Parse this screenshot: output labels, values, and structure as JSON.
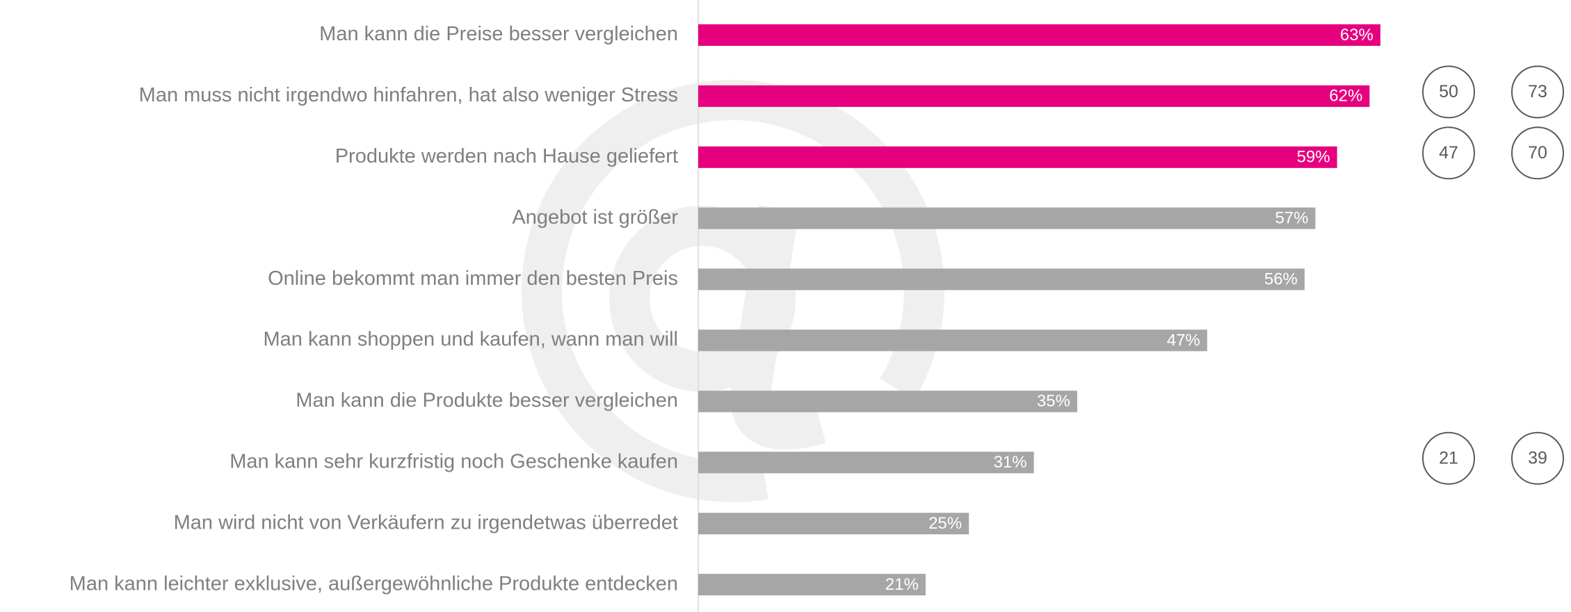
{
  "chart_data": {
    "type": "bar",
    "orientation": "horizontal",
    "categories": [
      "Man kann die Preise besser vergleichen",
      "Man muss nicht irgendwo hinfahren, hat also weniger Stress",
      "Produkte werden nach Hause geliefert",
      "Angebot ist größer",
      "Online bekommt man immer den besten Preis",
      "Man kann shoppen und kaufen, wann man will",
      "Man kann die Produkte besser vergleichen",
      "Man kann sehr kurzfristig noch Geschenke kaufen",
      "Man wird nicht von Verkäufern zu irgendetwas überredet",
      "Man kann leichter exklusive, außergewöhnliche Produkte entdecken"
    ],
    "values": [
      63,
      62,
      59,
      57,
      56,
      47,
      35,
      31,
      25,
      21
    ],
    "value_labels": [
      "63%",
      "62%",
      "59%",
      "57%",
      "56%",
      "47%",
      "35%",
      "31%",
      "25%",
      "21%"
    ],
    "colors": [
      "#e6007e",
      "#e6007e",
      "#e6007e",
      "#a6a6a6",
      "#a6a6a6",
      "#a6a6a6",
      "#a6a6a6",
      "#a6a6a6",
      "#a6a6a6",
      "#a6a6a6"
    ],
    "side_columns": [
      {
        "values": [
          null,
          50,
          47,
          null,
          null,
          null,
          null,
          21,
          null,
          null
        ]
      },
      {
        "values": [
          null,
          73,
          70,
          null,
          null,
          null,
          null,
          39,
          null,
          null
        ]
      }
    ]
  }
}
